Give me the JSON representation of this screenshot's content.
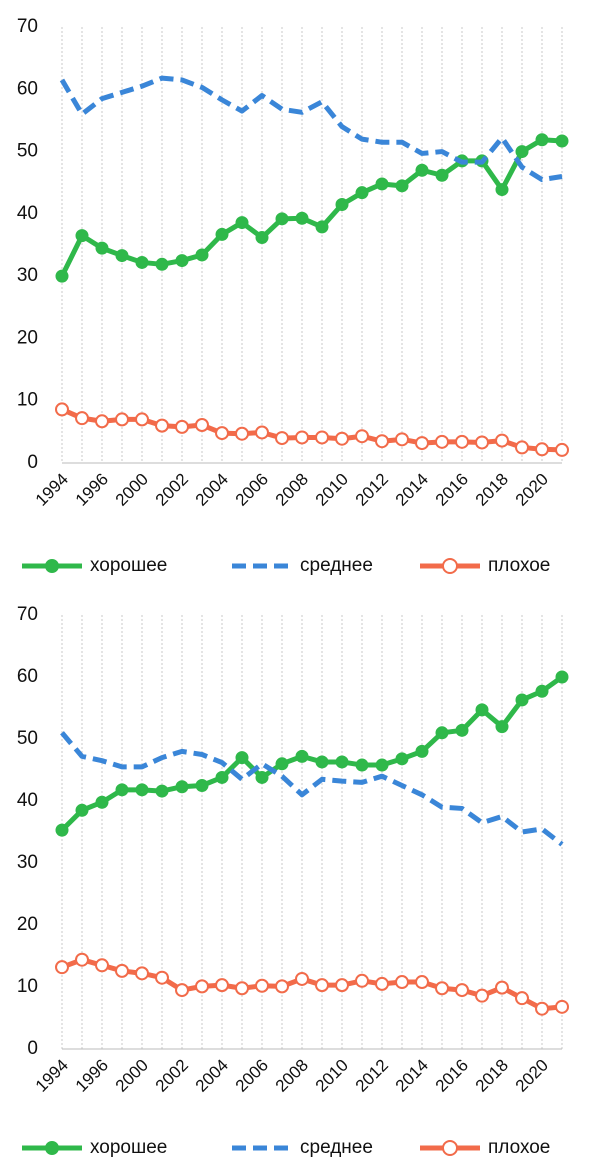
{
  "chart_data": [
    {
      "type": "line",
      "ylim": [
        0,
        70
      ],
      "yticks": [
        0,
        10,
        20,
        30,
        40,
        50,
        60,
        70
      ],
      "grid": true,
      "categories": [
        "1994",
        null,
        "1996",
        null,
        "2000",
        null,
        "2002",
        null,
        "2004",
        null,
        "2006",
        null,
        "2008",
        null,
        "2010",
        null,
        "2012",
        null,
        "2014",
        null,
        "2016",
        null,
        "2018",
        null,
        "2020",
        null
      ],
      "series": [
        {
          "name": "хорошее",
          "color": "#2fb84a",
          "marker": "filled",
          "dash": false,
          "values": [
            30,
            36.5,
            34.5,
            33.3,
            32.2,
            31.9,
            32.5,
            33.4,
            36.7,
            38.6,
            36.2,
            39.2,
            39.3,
            37.9,
            41.5,
            43.4,
            44.8,
            44.5,
            47,
            46.2,
            48.5,
            48.5,
            43.9,
            50,
            51.9,
            51.7
          ]
        },
        {
          "name": "среднее",
          "color": "#3a86d8",
          "marker": "none",
          "dash": true,
          "values": [
            61.5,
            56,
            58.5,
            59.5,
            60.5,
            61.8,
            61.5,
            60.3,
            58.3,
            56.5,
            59,
            56.8,
            56.3,
            58,
            54,
            52,
            51.5,
            51.5,
            49.7,
            50,
            48.3,
            48.3,
            52.2,
            47.5,
            45.5,
            46
          ]
        },
        {
          "name": "плохое",
          "color": "#f26b4a",
          "marker": "open",
          "dash": false,
          "values": [
            8.6,
            7.2,
            6.7,
            7,
            7,
            6,
            5.8,
            6.1,
            4.8,
            4.7,
            4.9,
            4,
            4.1,
            4.1,
            3.9,
            4.3,
            3.5,
            3.8,
            3.2,
            3.4,
            3.4,
            3.3,
            3.6,
            2.5,
            2.2,
            2.1
          ]
        }
      ]
    },
    {
      "type": "line",
      "ylim": [
        0,
        70
      ],
      "yticks": [
        0,
        10,
        20,
        30,
        40,
        50,
        60,
        70
      ],
      "grid": true,
      "categories": [
        "1994",
        null,
        "1996",
        null,
        "2000",
        null,
        "2002",
        null,
        "2004",
        null,
        "2006",
        null,
        "2008",
        null,
        "2010",
        null,
        "2012",
        null,
        "2014",
        null,
        "2016",
        null,
        "2018",
        null,
        "2020",
        null
      ],
      "series": [
        {
          "name": "хорошее",
          "color": "#2fb84a",
          "marker": "filled",
          "dash": false,
          "values": [
            35.3,
            38.5,
            39.8,
            41.8,
            41.8,
            41.6,
            42.3,
            42.5,
            43.8,
            47,
            43.8,
            46,
            47.2,
            46.3,
            46.3,
            45.8,
            45.8,
            46.8,
            48,
            51,
            51.4,
            54.7,
            52,
            56.3,
            57.7,
            60
          ]
        },
        {
          "name": "среднее",
          "color": "#3a86d8",
          "marker": "none",
          "dash": true,
          "values": [
            51,
            47.2,
            46.5,
            45.5,
            45.5,
            47,
            48,
            47.5,
            46.2,
            43.5,
            46,
            44,
            41,
            43.5,
            43.2,
            43,
            44,
            42.5,
            41,
            39,
            38.8,
            36.5,
            37.5,
            35,
            35.5,
            33
          ]
        },
        {
          "name": "плохое",
          "color": "#f26b4a",
          "marker": "open",
          "dash": false,
          "values": [
            13.2,
            14.4,
            13.5,
            12.6,
            12.2,
            11.5,
            9.5,
            10.1,
            10.3,
            9.8,
            10.2,
            10.1,
            11.3,
            10.3,
            10.3,
            11,
            10.5,
            10.8,
            10.8,
            9.8,
            9.5,
            8.6,
            9.9,
            8.2,
            6.5,
            6.8
          ]
        }
      ]
    }
  ]
}
